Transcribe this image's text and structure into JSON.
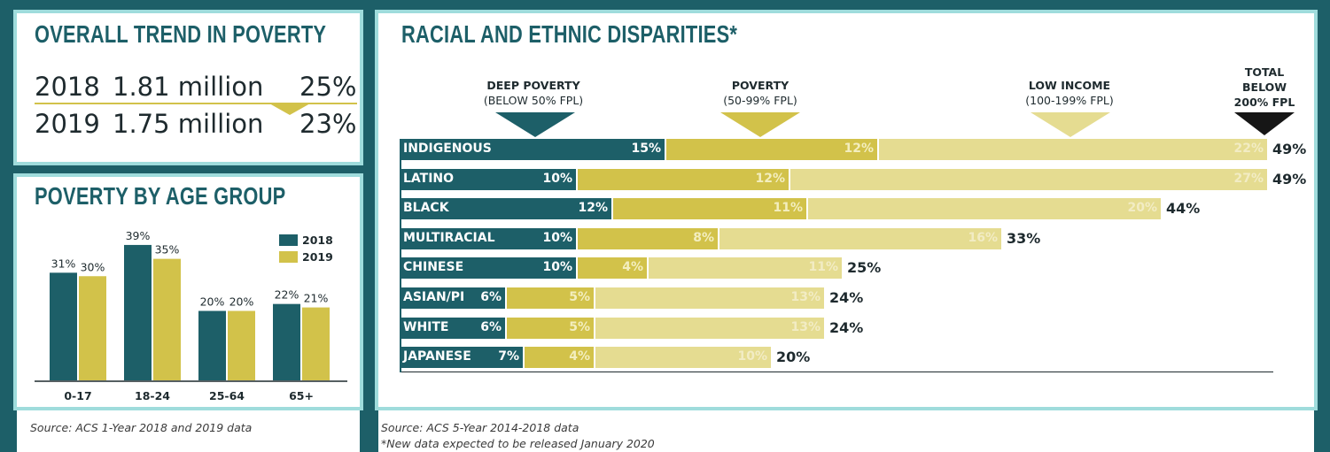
{
  "colors": {
    "background": "#1d5f68",
    "panel_border": "#9fdcdc",
    "teal": "#1d5f68",
    "gold": "#d2c24a",
    "light_gold": "#e5dc91",
    "light_gold_text": "#f2ecc4",
    "gold_text": "#f3eebf"
  },
  "trend": {
    "title": "OVERALL TREND IN POVERTY",
    "rows": [
      {
        "year": "2018",
        "amount": "1.81 million",
        "pct": "25%"
      },
      {
        "year": "2019",
        "amount": "1.75 million",
        "pct": "23%"
      }
    ]
  },
  "age": {
    "title": "POVERTY BY AGE GROUP",
    "source": "Source: ACS 1-Year 2018 and 2019 data"
  },
  "disparities": {
    "title": "RACIAL AND ETHNIC DISPARITIES*",
    "headers": {
      "deep": {
        "title": "DEEP POVERTY",
        "sub": "(BELOW 50% FPL)"
      },
      "poverty": {
        "title": "POVERTY",
        "sub": "(50-99% FPL)"
      },
      "low": {
        "title": "LOW INCOME",
        "sub": "(100-199% FPL)"
      },
      "total": {
        "line1": "TOTAL",
        "line2": "BELOW",
        "line3": "200% FPL"
      }
    },
    "source": "Source: ACS 5-Year 2014-2018 data",
    "note": "*New data expected to be released January 2020"
  },
  "chart_data": [
    {
      "type": "bar",
      "title": "POVERTY BY AGE GROUP",
      "categories": [
        "0-17",
        "18-24",
        "25-64",
        "65+"
      ],
      "series": [
        {
          "name": "2018",
          "values": [
            31,
            39,
            20,
            22
          ],
          "labels": [
            "31%",
            "39%",
            "20%",
            "22%"
          ],
          "color": "#1d5f68"
        },
        {
          "name": "2019",
          "values": [
            30,
            35,
            20,
            21
          ],
          "labels": [
            "30%",
            "35%",
            "20%",
            "21%"
          ],
          "color": "#d2c24a"
        }
      ],
      "ylim": [
        0,
        40
      ],
      "legend": "top-right"
    },
    {
      "type": "bar",
      "orientation": "horizontal",
      "stacked": true,
      "title": "RACIAL AND ETHNIC DISPARITIES*",
      "categories": [
        "INDIGENOUS",
        "LATINO",
        "BLACK",
        "MULTIRACIAL",
        "CHINESE",
        "ASIAN/PI",
        "WHITE",
        "JAPANESE"
      ],
      "series": [
        {
          "name": "DEEP POVERTY",
          "values": [
            15,
            10,
            12,
            10,
            10,
            6,
            6,
            7
          ]
        },
        {
          "name": "POVERTY",
          "values": [
            12,
            12,
            11,
            8,
            4,
            5,
            5,
            4
          ]
        },
        {
          "name": "LOW INCOME",
          "values": [
            22,
            27,
            20,
            16,
            11,
            13,
            13,
            10
          ]
        }
      ],
      "totals": [
        49,
        49,
        44,
        33,
        25,
        24,
        24,
        20
      ]
    }
  ]
}
